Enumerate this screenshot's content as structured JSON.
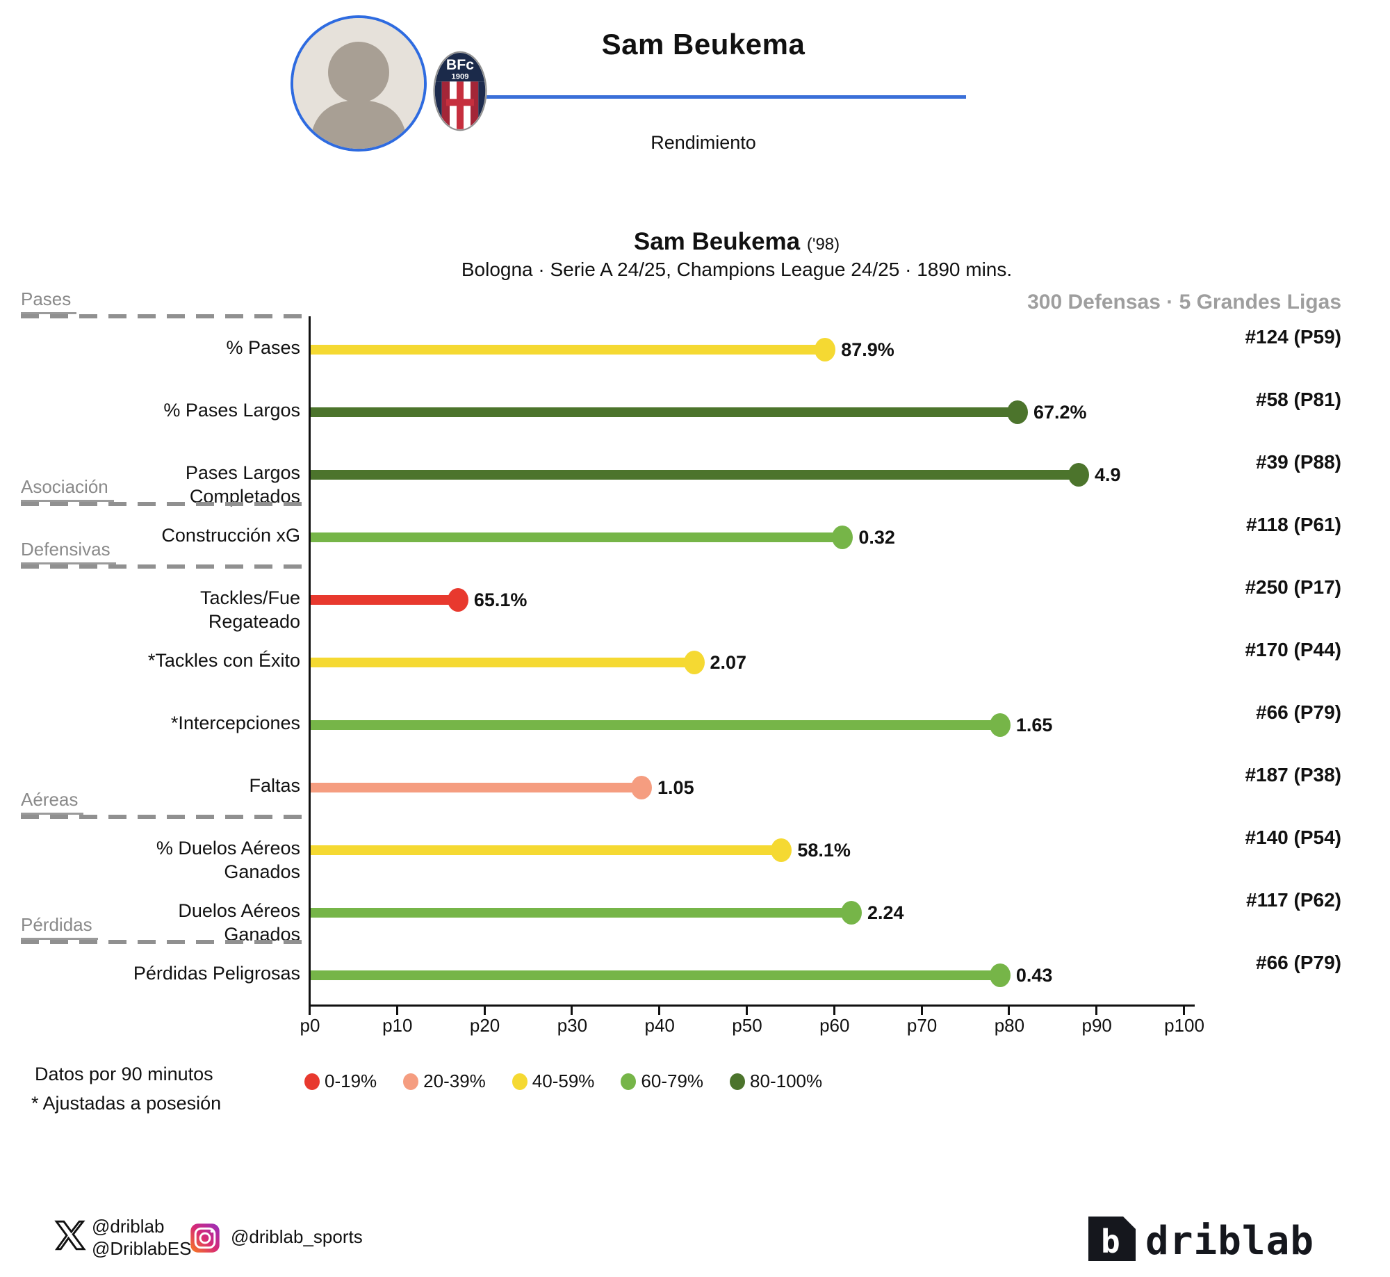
{
  "header": {
    "player_name": "Sam Beukema",
    "section_label": "Rendimiento",
    "club_badge_top": "BFc",
    "club_badge_year": "1909"
  },
  "chart": {
    "title": "Sam Beukema",
    "title_suffix": "('98)",
    "subtitle": "Bologna · Serie A 24/25, Champions League 24/25 · 1890 mins.",
    "context_label": "300 Defensas · 5 Grandes Ligas"
  },
  "chart_data": {
    "type": "bar",
    "title": "Sam Beukema ('98)",
    "subtitle": "Bologna · Serie A 24/25, Champions League 24/25 · 1890 mins.",
    "xlabel": "percentile",
    "xlim": [
      0,
      100
    ],
    "x_ticks": [
      "p0",
      "p10",
      "p20",
      "p30",
      "p40",
      "p50",
      "p60",
      "p70",
      "p80",
      "p90",
      "p100"
    ],
    "legend_position": "bottom",
    "grid": false,
    "metrics": [
      {
        "label": "% Pases",
        "value_label": "87.9%",
        "percentile": 59,
        "rank": "#124 (P59)",
        "band": "40-59%"
      },
      {
        "label": "% Pases Largos",
        "value_label": "67.2%",
        "percentile": 81,
        "rank": "#58 (P81)",
        "band": "80-100%"
      },
      {
        "label": "Pases Largos\nCompletados",
        "value_label": "4.9",
        "percentile": 88,
        "rank": "#39 (P88)",
        "band": "80-100%"
      },
      {
        "label": "Construcción xG",
        "value_label": "0.32",
        "percentile": 61,
        "rank": "#118 (P61)",
        "band": "60-79%"
      },
      {
        "label": "Tackles/Fue\nRegateado",
        "value_label": "65.1%",
        "percentile": 17,
        "rank": "#250 (P17)",
        "band": "0-19%"
      },
      {
        "label": "*Tackles con Éxito",
        "value_label": "2.07",
        "percentile": 44,
        "rank": "#170 (P44)",
        "band": "40-59%"
      },
      {
        "label": "*Intercepciones",
        "value_label": "1.65",
        "percentile": 79,
        "rank": "#66 (P79)",
        "band": "60-79%"
      },
      {
        "label": "Faltas",
        "value_label": "1.05",
        "percentile": 38,
        "rank": "#187 (P38)",
        "band": "20-39%"
      },
      {
        "label": "% Duelos Aéreos\nGanados",
        "value_label": "58.1%",
        "percentile": 54,
        "rank": "#140 (P54)",
        "band": "40-59%"
      },
      {
        "label": "Duelos Aéreos\nGanados",
        "value_label": "2.24",
        "percentile": 62,
        "rank": "#117 (P62)",
        "band": "60-79%"
      },
      {
        "label": "Pérdidas Peligrosas",
        "value_label": "0.43",
        "percentile": 79,
        "rank": "#66 (P79)",
        "band": "60-79%"
      }
    ],
    "groups": [
      {
        "label": "Pases",
        "before_index": 0
      },
      {
        "label": "Asociación",
        "before_index": 3
      },
      {
        "label": "Defensivas",
        "before_index": 4
      },
      {
        "label": "Aéreas",
        "before_index": 8
      },
      {
        "label": "Pérdidas",
        "before_index": 10
      }
    ],
    "band_colors": {
      "0-19%": "#e8392e",
      "20-39%": "#f59d80",
      "40-59%": "#f5d932",
      "60-79%": "#76b548",
      "80-100%": "#4c742c"
    }
  },
  "legend": {
    "items": [
      {
        "label": "0-19%",
        "color": "#e8392e"
      },
      {
        "label": "20-39%",
        "color": "#f59d80"
      },
      {
        "label": "40-59%",
        "color": "#f5d932"
      },
      {
        "label": "60-79%",
        "color": "#76b548"
      },
      {
        "label": "80-100%",
        "color": "#4c742c"
      }
    ]
  },
  "notes": {
    "per90": "Datos por 90 minutos",
    "possession": "* Ajustadas a posesión"
  },
  "footer": {
    "x_handle_1": "@driblab",
    "x_handle_2": "@DriblabES",
    "instagram_handle": "@driblab_sports",
    "brand": "driblab"
  },
  "accent_colors": {
    "header_line_blue": "#3a6fd8",
    "avatar_ring_blue": "#2e6be0",
    "context_gray": "#9e9e9e"
  }
}
